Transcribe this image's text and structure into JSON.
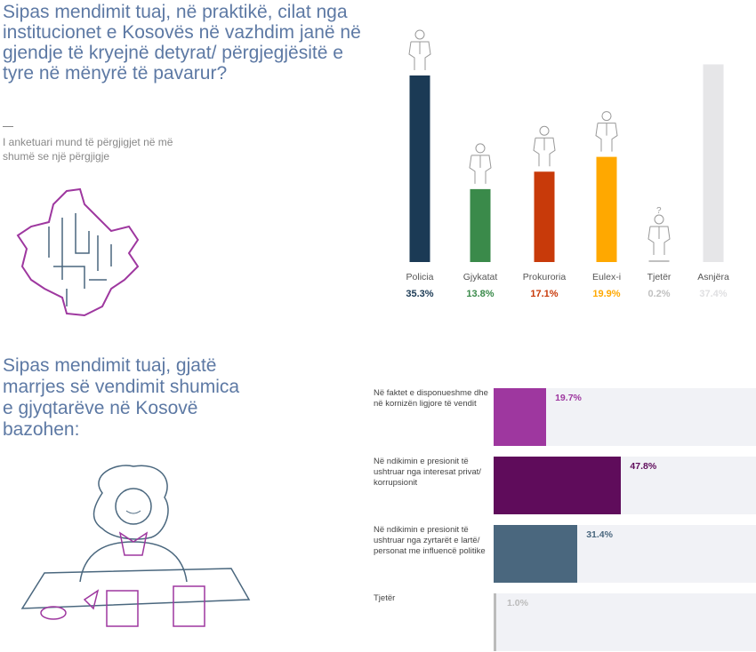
{
  "q1": {
    "title": "Sipas mendimit tuaj, në praktikë, cilat nga institucionet e Kosovës në vazhdim janë në gjendje të kryejnë detyrat/ përgjegjësitë e tyre në mënyrë të pavarur?",
    "note": "I anketuari mund të përgjigjet në më shumë se një përgjigje"
  },
  "q2": {
    "title": "Sipas mendimit tuaj, gjatë marrjes së vendimit shumica e gjyqtarëve në Kosovë bazohen:"
  },
  "chart_data": [
    {
      "type": "bar",
      "title": "",
      "categories": [
        "Policia",
        "Gjykatat",
        "Prokuroria",
        "Eulex-i",
        "Tjetër",
        "Asnjëra"
      ],
      "values": [
        35.3,
        13.8,
        17.1,
        19.9,
        0.2,
        37.4
      ],
      "labels": [
        "35.3%",
        "13.8%",
        "17.1%",
        "19.9%",
        "0.2%",
        "37.4%"
      ],
      "colors": [
        "#1b3a55",
        "#3a8a4a",
        "#c83a0a",
        "#ffa800",
        "#c0c0c0",
        "#e6e6e8"
      ],
      "ylim": [
        0,
        40
      ]
    },
    {
      "type": "bar",
      "orientation": "horizontal",
      "categories": [
        "Në faktet e disponueshme dhe në kornizën ligjore të vendit",
        "Në ndikimin e presionit të ushtruar nga interesat privat/ korrupsionit",
        "Në ndikimin e presionit të ushtruar nga zyrtarët e lartë/ personat me influencë politike",
        "Tjetër"
      ],
      "values": [
        19.7,
        47.8,
        31.4,
        1.0
      ],
      "labels": [
        "19.7%",
        "47.8%",
        "31.4%",
        "1.0%"
      ],
      "colors": [
        "#9e379f",
        "#5f0c5b",
        "#4a677e",
        "#bbbbbb"
      ],
      "xlim": [
        0,
        100
      ]
    }
  ]
}
